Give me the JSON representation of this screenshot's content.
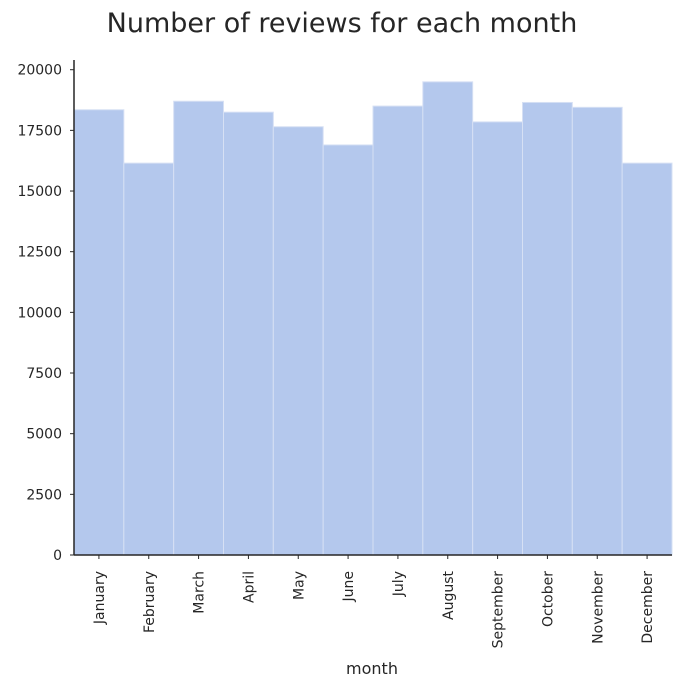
{
  "chart_data": {
    "type": "bar",
    "title": "Number of reviews for each month",
    "xlabel": "month",
    "ylabel": "",
    "categories": [
      "January",
      "February",
      "March",
      "April",
      "May",
      "June",
      "July",
      "August",
      "September",
      "October",
      "November",
      "December"
    ],
    "values": [
      18350,
      16150,
      18700,
      18250,
      17650,
      16900,
      18500,
      19500,
      17850,
      18650,
      18450,
      16150
    ],
    "ylim": [
      0,
      20400
    ],
    "yticks": [
      0,
      2500,
      5000,
      7500,
      10000,
      12500,
      15000,
      17500,
      20000
    ],
    "grid": false,
    "legend": "none",
    "colors": {
      "bar_fill": "#b4c8ed",
      "bar_stroke": "#d6e0f4",
      "axis": "#262626",
      "text": "#262626"
    }
  }
}
